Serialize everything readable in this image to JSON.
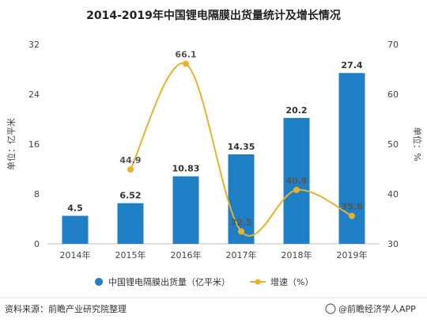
{
  "chart_data": {
    "type": "bar",
    "title": "2014-2019年中国锂电隔膜出货量统计及增长情况",
    "categories": [
      "2014年",
      "2015年",
      "2016年",
      "2017年",
      "2018年",
      "2019年"
    ],
    "series": [
      {
        "name": "中国锂电隔膜出货量（亿平米）",
        "type": "bar",
        "axis": "left",
        "color": "#1f7fc4",
        "values": [
          4.5,
          6.52,
          10.83,
          14.35,
          20.2,
          27.4
        ],
        "labels": [
          "4.5",
          "6.52",
          "10.83",
          "14.35",
          "20.2",
          "27.4"
        ]
      },
      {
        "name": "增速（%）",
        "type": "line",
        "axis": "right",
        "color": "#e8b22c",
        "values": [
          null,
          44.9,
          66.1,
          32.5,
          40.8,
          35.6
        ],
        "labels": [
          "",
          "44.9",
          "66.1",
          "32.5",
          "40.8",
          "35.6"
        ]
      }
    ],
    "y_left": {
      "label": "单位：亿平米",
      "min": 0,
      "max": 32,
      "ticks": [
        "0",
        "8",
        "16",
        "24",
        "32"
      ]
    },
    "y_right": {
      "label": "单位：%",
      "min": 30,
      "max": 70,
      "ticks": [
        "30",
        "40",
        "50",
        "60",
        "70"
      ]
    },
    "grid": false,
    "legend_position": "bottom"
  },
  "footer": {
    "source": "资料来源：前瞻产业研究院整理",
    "brand": "@前瞻经济学人APP"
  }
}
